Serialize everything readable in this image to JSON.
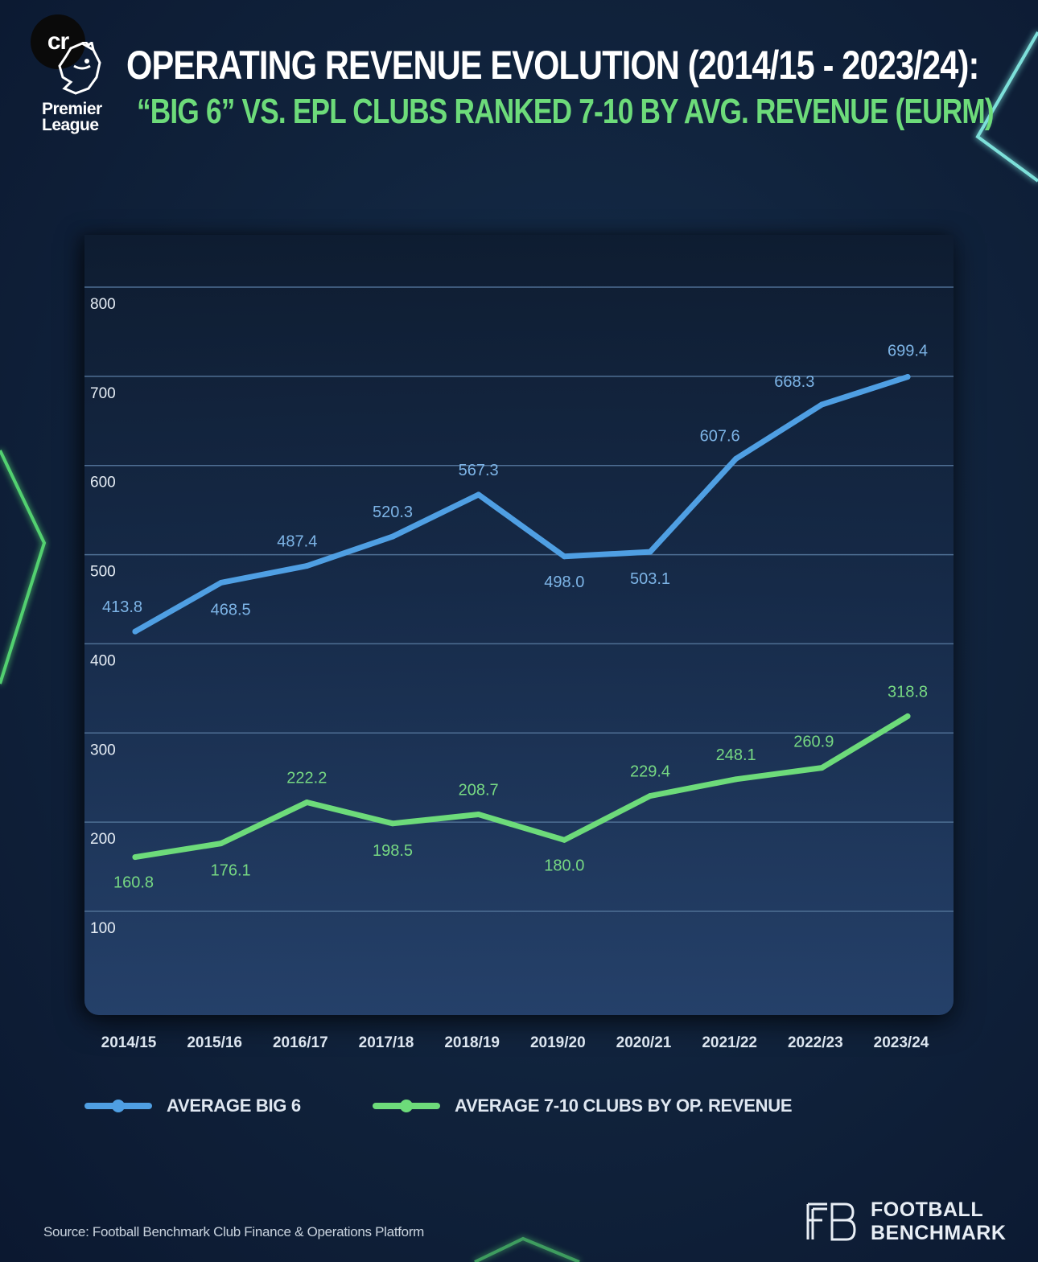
{
  "header": {
    "badge_text": "cr",
    "league_line1": "Premier",
    "league_line2": "League",
    "title": "OPERATING REVENUE EVOLUTION (2014/15 - 2023/24):",
    "subtitle": "“BIG 6” VS. EPL CLUBS RANKED 7-10 BY AVG. REVENUE (EURM)"
  },
  "colors": {
    "big6": "#4f9fe3",
    "big6_label": "#7db4e6",
    "others": "#6ddb7a",
    "others_label": "#77d983",
    "grid": "#4f6f94",
    "neon": "#5ef07a",
    "neon_cyan": "#7ff0e8"
  },
  "chart_data": {
    "type": "line",
    "title": "OPERATING REVENUE EVOLUTION (2014/15 - 2023/24): “BIG 6” VS. EPL CLUBS RANKED 7-10 BY AVG. REVENUE (EURM)",
    "xlabel": "",
    "ylabel": "",
    "categories": [
      "2014/15",
      "2015/16",
      "2016/17",
      "2017/18",
      "2018/19",
      "2019/20",
      "2020/21",
      "2021/22",
      "2022/23",
      "2023/24"
    ],
    "yticks": [
      "100",
      "200",
      "300",
      "400",
      "500",
      "600",
      "700",
      "800"
    ],
    "ylim": [
      0,
      850
    ],
    "grid": true,
    "series": [
      {
        "name": "AVERAGE BIG 6",
        "values": [
          413.8,
          468.5,
          487.4,
          520.3,
          567.3,
          498.0,
          503.1,
          607.6,
          668.3,
          699.4
        ],
        "labels": [
          "413.8",
          "468.5",
          "487.4",
          "520.3",
          "567.3",
          "498.0",
          "503.1",
          "607.6",
          "668.3",
          "699.4"
        ]
      },
      {
        "name": "AVERAGE 7-10 CLUBS BY OP. REVENUE",
        "values": [
          160.8,
          176.1,
          222.2,
          198.5,
          208.7,
          180.0,
          229.4,
          248.1,
          260.9,
          318.8
        ],
        "labels": [
          "160.8",
          "176.1",
          "222.2",
          "198.5",
          "208.7",
          "180.0",
          "229.4",
          "248.1",
          "260.9",
          "318.8"
        ]
      }
    ],
    "legend": [
      "AVERAGE BIG 6",
      "AVERAGE 7-10 CLUBS BY OP. REVENUE"
    ],
    "legend_position": "bottom-left"
  },
  "footer": {
    "source": "Source: Football Benchmark Club Finance & Operations Platform",
    "brand_line1": "FOOTBALL",
    "brand_line2": "BENCHMARK"
  }
}
